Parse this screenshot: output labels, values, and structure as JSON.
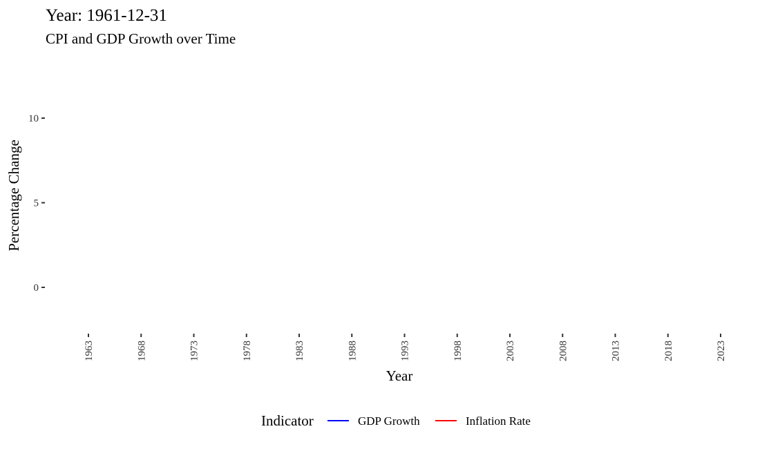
{
  "chart_data": {
    "type": "line",
    "title": "Year: 1961-12-31",
    "subtitle": "CPI and GDP Growth over Time",
    "xlabel": "Year",
    "ylabel": "Percentage Change",
    "x_ticks": [
      "1963",
      "1968",
      "1973",
      "1978",
      "1983",
      "1988",
      "1993",
      "1998",
      "2003",
      "2008",
      "2013",
      "2018",
      "2023"
    ],
    "y_ticks": [
      "0",
      "5",
      "10"
    ],
    "ylim": [
      -2.3,
      12.5
    ],
    "grid": false,
    "legend_position": "bottom",
    "legend_title": "Indicator",
    "series": [
      {
        "name": "GDP Growth",
        "color": "#0000ff",
        "x": [],
        "values": []
      },
      {
        "name": "Inflation Rate",
        "color": "#ff0000",
        "x": [],
        "values": []
      }
    ]
  }
}
